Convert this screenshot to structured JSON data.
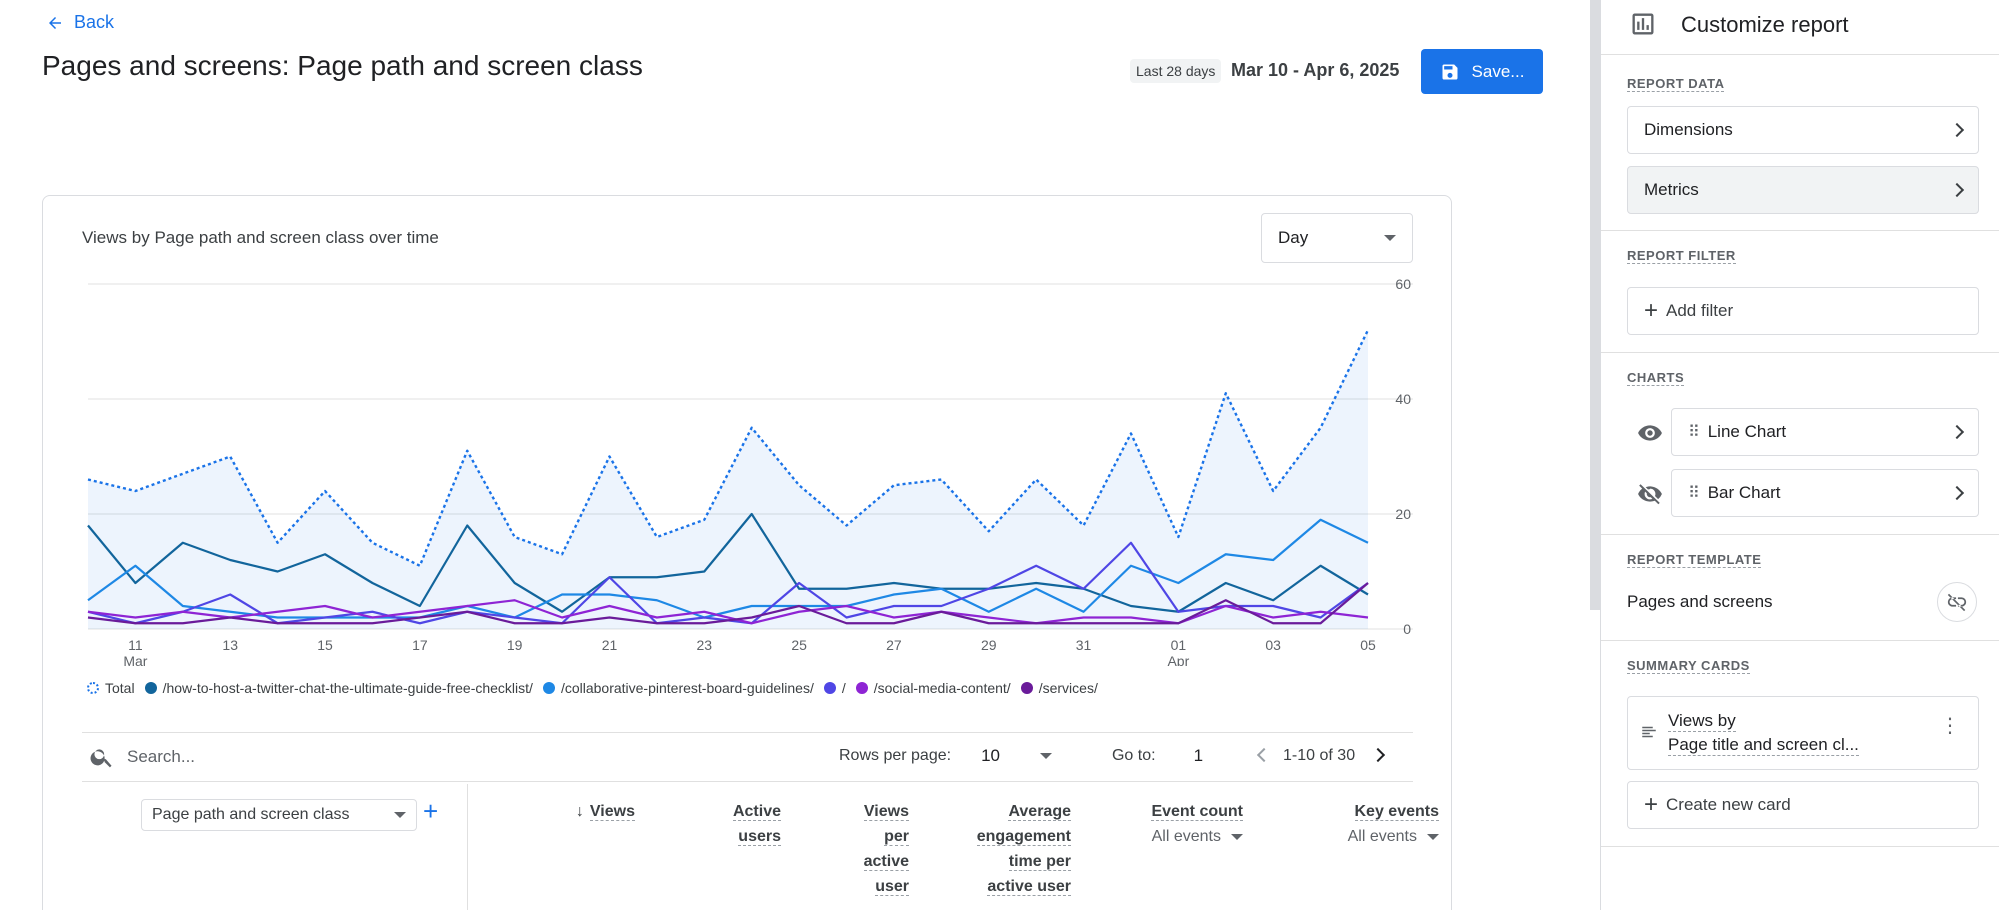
{
  "header": {
    "back_label": "Back",
    "title": "Pages and screens: Page path and screen class",
    "date_chip": "Last 28 days",
    "date_range": "Mar 10 - Apr 6, 2025",
    "save_label": "Save..."
  },
  "card": {
    "title": "Views by Page path and screen class over time",
    "granularity": "Day"
  },
  "chart_data": {
    "type": "line",
    "title": "Views by Page path and screen class over time",
    "x": [
      "Mar 10",
      "Mar 11",
      "Mar 12",
      "Mar 13",
      "Mar 14",
      "Mar 15",
      "Mar 16",
      "Mar 17",
      "Mar 18",
      "Mar 19",
      "Mar 20",
      "Mar 21",
      "Mar 22",
      "Mar 23",
      "Mar 24",
      "Mar 25",
      "Mar 26",
      "Mar 27",
      "Mar 28",
      "Mar 29",
      "Mar 30",
      "Mar 31",
      "Apr 1",
      "Apr 2",
      "Apr 3",
      "Apr 4",
      "Apr 5",
      "Apr 6"
    ],
    "x_tick_labels": [
      {
        "label": "11",
        "sub": "Mar"
      },
      {
        "label": "13",
        "sub": ""
      },
      {
        "label": "15",
        "sub": ""
      },
      {
        "label": "17",
        "sub": ""
      },
      {
        "label": "19",
        "sub": ""
      },
      {
        "label": "21",
        "sub": ""
      },
      {
        "label": "23",
        "sub": ""
      },
      {
        "label": "25",
        "sub": ""
      },
      {
        "label": "27",
        "sub": ""
      },
      {
        "label": "29",
        "sub": ""
      },
      {
        "label": "31",
        "sub": ""
      },
      {
        "label": "01",
        "sub": "Apr"
      },
      {
        "label": "03",
        "sub": ""
      },
      {
        "label": "05",
        "sub": ""
      }
    ],
    "y_ticks": [
      0,
      20,
      40,
      60
    ],
    "ylim": [
      0,
      60
    ],
    "series": [
      {
        "name": "Total",
        "color": "#1a73e8",
        "style": "dotted",
        "area": true,
        "values": [
          26,
          24,
          27,
          30,
          15,
          24,
          15,
          11,
          31,
          16,
          13,
          30,
          16,
          19,
          35,
          25,
          18,
          25,
          26,
          17,
          26,
          18,
          34,
          16,
          41,
          24,
          35,
          52
        ]
      },
      {
        "name": "/how-to-host-a-twitter-chat-the-ultimate-guide-free-checklist/",
        "color": "#12659c",
        "style": "solid",
        "values": [
          18,
          8,
          15,
          12,
          10,
          13,
          8,
          4,
          18,
          8,
          3,
          9,
          9,
          10,
          20,
          7,
          7,
          8,
          7,
          7,
          8,
          7,
          4,
          3,
          8,
          5,
          11,
          6
        ]
      },
      {
        "name": "/collaborative-pinterest-board-guidelines/",
        "color": "#1e88e5",
        "style": "solid",
        "values": [
          5,
          11,
          4,
          3,
          2,
          2,
          2,
          2,
          4,
          2,
          6,
          6,
          5,
          2,
          4,
          4,
          4,
          6,
          7,
          3,
          7,
          3,
          11,
          8,
          13,
          12,
          19,
          15
        ]
      },
      {
        "name": "/",
        "color": "#4f46e5",
        "style": "solid",
        "values": [
          3,
          1,
          3,
          6,
          1,
          2,
          3,
          1,
          3,
          2,
          1,
          9,
          1,
          2,
          1,
          8,
          2,
          4,
          4,
          7,
          11,
          7,
          15,
          3,
          4,
          4,
          2,
          8
        ]
      },
      {
        "name": "/social-media-content/",
        "color": "#8e24d4",
        "style": "solid",
        "values": [
          3,
          2,
          3,
          2,
          3,
          4,
          2,
          3,
          4,
          5,
          2,
          4,
          2,
          3,
          1,
          3,
          4,
          2,
          3,
          2,
          1,
          2,
          2,
          1,
          4,
          2,
          3,
          2
        ]
      },
      {
        "name": "/services/",
        "color": "#6a1b9a",
        "style": "solid",
        "values": [
          2,
          1,
          1,
          2,
          1,
          1,
          1,
          2,
          3,
          1,
          1,
          2,
          1,
          1,
          2,
          4,
          1,
          1,
          3,
          1,
          1,
          1,
          1,
          1,
          5,
          1,
          1,
          8
        ]
      }
    ]
  },
  "table_controls": {
    "search_placeholder": "Search...",
    "rows_per_page_label": "Rows per page:",
    "rows_per_page_value": "10",
    "goto_label": "Go to:",
    "goto_value": "1",
    "range_text": "1-10 of 30"
  },
  "table": {
    "dimension_select": "Page path and screen class",
    "columns": [
      {
        "l1": "Views"
      },
      {
        "l1": "Active",
        "l2": "users"
      },
      {
        "l1": "Views",
        "l2": "per",
        "l3": "active",
        "l4": "user"
      },
      {
        "l1": "Average",
        "l2": "engagement",
        "l3": "time per",
        "l4": "active user"
      },
      {
        "l1": "Event count",
        "sub": "All events"
      },
      {
        "l1": "Key events",
        "sub": "All events"
      }
    ]
  },
  "sidebar": {
    "title": "Customize report",
    "report_data_label": "REPORT DATA",
    "dimensions_label": "Dimensions",
    "metrics_label": "Metrics",
    "report_filter_label": "REPORT FILTER",
    "add_filter_label": "Add filter",
    "charts_label": "CHARTS",
    "line_chart_label": "Line Chart",
    "bar_chart_label": "Bar Chart",
    "report_template_label": "REPORT TEMPLATE",
    "template_name": "Pages and screens",
    "summary_cards_label": "SUMMARY CARDS",
    "summary_card_line1": "Views by",
    "summary_card_line2": "Page title and screen cl...",
    "create_card_label": "Create new card"
  }
}
